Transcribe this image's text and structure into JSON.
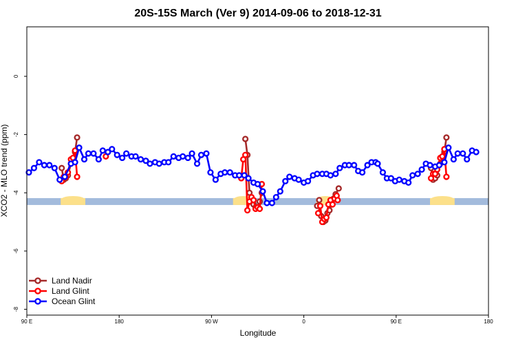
{
  "chart_data": {
    "type": "line",
    "title": "20S-15S March (Ver 9)   2014-09-06 to 2018-12-31",
    "xlabel": "Longitude",
    "ylabel": "XCO2 - MLO trend (ppm)",
    "xlim": [
      90,
      540
    ],
    "ylim": [
      -8.2,
      1.7
    ],
    "x_ticks": [
      {
        "value": 90,
        "label": "90 E"
      },
      {
        "value": 180,
        "label": "180"
      },
      {
        "value": 270,
        "label": "90 W"
      },
      {
        "value": 360,
        "label": "0"
      },
      {
        "value": 450,
        "label": "90 E"
      },
      {
        "value": 540,
        "label": "180"
      }
    ],
    "y_ticks": [
      {
        "value": 0,
        "label": "0"
      },
      {
        "value": -2,
        "label": "-2"
      },
      {
        "value": -4,
        "label": "-4"
      },
      {
        "value": -6,
        "label": "-6"
      },
      {
        "value": -8,
        "label": "-8"
      }
    ],
    "legend_position": "bottom-left",
    "land_band": {
      "y": -4.3,
      "ocean_color": "#a3bbdc",
      "land_color": "#fce08a",
      "land_ranges": [
        [
          123,
          147
        ],
        [
          291,
          311
        ],
        [
          372,
          390
        ],
        [
          483,
          507
        ]
      ]
    },
    "series": [
      {
        "name": "Land Nadir",
        "color": "#a52a2a",
        "points": [
          [
            124,
            -3.15
          ],
          [
            126,
            -3.55
          ],
          [
            128,
            -3.5
          ],
          [
            130,
            -3.4
          ],
          [
            133,
            -3.0
          ],
          [
            135,
            -2.85
          ],
          [
            137,
            -2.6
          ],
          [
            139,
            -2.1
          ],
          [
            303,
            -2.15
          ],
          [
            305,
            -2.7
          ],
          [
            307,
            -4.0
          ],
          [
            309,
            -4.3
          ],
          [
            311,
            -4.4
          ],
          [
            313,
            -4.5
          ],
          [
            315,
            -4.5
          ],
          [
            317,
            -4.3
          ],
          [
            319,
            -4.0
          ],
          [
            373,
            -4.45
          ],
          [
            375,
            -4.25
          ],
          [
            377,
            -4.8
          ],
          [
            379,
            -5.0
          ],
          [
            381,
            -4.95
          ],
          [
            383,
            -4.7
          ],
          [
            385,
            -4.6
          ],
          [
            387,
            -4.4
          ],
          [
            389,
            -4.2
          ],
          [
            391,
            -4.05
          ],
          [
            394,
            -3.85
          ],
          [
            484,
            -3.15
          ],
          [
            486,
            -3.55
          ],
          [
            488,
            -3.5
          ],
          [
            490,
            -3.4
          ],
          [
            493,
            -3.0
          ],
          [
            495,
            -2.85
          ],
          [
            497,
            -2.6
          ],
          [
            499,
            -2.1
          ]
        ]
      },
      {
        "name": "Land Glint",
        "color": "#ff0000",
        "points": [
          [
            124,
            -3.6
          ],
          [
            126,
            -3.45
          ],
          [
            128,
            -3.45
          ],
          [
            130,
            -3.3
          ],
          [
            133,
            -2.85
          ],
          [
            135,
            -2.8
          ],
          [
            137,
            -2.55
          ],
          [
            139,
            -3.45
          ],
          [
            167,
            -2.75
          ],
          [
            299,
            -3.5
          ],
          [
            301,
            -2.85
          ],
          [
            303,
            -2.7
          ],
          [
            305,
            -4.6
          ],
          [
            307,
            -4.3
          ],
          [
            309,
            -4.15
          ],
          [
            311,
            -4.25
          ],
          [
            313,
            -4.55
          ],
          [
            315,
            -4.5
          ],
          [
            317,
            -4.55
          ],
          [
            319,
            -3.7
          ],
          [
            374,
            -4.7
          ],
          [
            376,
            -4.45
          ],
          [
            378,
            -5.0
          ],
          [
            380,
            -4.9
          ],
          [
            382,
            -4.85
          ],
          [
            384,
            -4.4
          ],
          [
            386,
            -4.25
          ],
          [
            388,
            -4.4
          ],
          [
            390,
            -4.2
          ],
          [
            392,
            -4.1
          ],
          [
            393,
            -4.25
          ],
          [
            484,
            -3.5
          ],
          [
            486,
            -3.35
          ],
          [
            488,
            -3.35
          ],
          [
            490,
            -3.2
          ],
          [
            493,
            -2.8
          ],
          [
            495,
            -2.75
          ],
          [
            497,
            -2.5
          ],
          [
            499,
            -3.45
          ]
        ]
      },
      {
        "name": "Ocean Glint",
        "color": "#0000ff",
        "points": [
          [
            92,
            -3.3
          ],
          [
            97,
            -3.15
          ],
          [
            102,
            -2.95
          ],
          [
            107,
            -3.05
          ],
          [
            112,
            -3.05
          ],
          [
            117,
            -3.15
          ],
          [
            122,
            -3.55
          ],
          [
            127,
            -3.45
          ],
          [
            133,
            -3.0
          ],
          [
            137,
            -2.95
          ],
          [
            141,
            -2.45
          ],
          [
            146,
            -2.85
          ],
          [
            150,
            -2.65
          ],
          [
            155,
            -2.65
          ],
          [
            160,
            -2.85
          ],
          [
            164,
            -2.55
          ],
          [
            169,
            -2.6
          ],
          [
            173,
            -2.5
          ],
          [
            178,
            -2.7
          ],
          [
            183,
            -2.8
          ],
          [
            187,
            -2.65
          ],
          [
            192,
            -2.75
          ],
          [
            196,
            -2.75
          ],
          [
            201,
            -2.85
          ],
          [
            206,
            -2.9
          ],
          [
            210,
            -3.0
          ],
          [
            215,
            -2.95
          ],
          [
            219,
            -3.0
          ],
          [
            224,
            -2.95
          ],
          [
            228,
            -2.95
          ],
          [
            233,
            -2.75
          ],
          [
            238,
            -2.8
          ],
          [
            242,
            -2.75
          ],
          [
            247,
            -2.8
          ],
          [
            251,
            -2.65
          ],
          [
            256,
            -3.0
          ],
          [
            260,
            -2.7
          ],
          [
            265,
            -2.65
          ],
          [
            269,
            -3.3
          ],
          [
            274,
            -3.55
          ],
          [
            279,
            -3.35
          ],
          [
            283,
            -3.3
          ],
          [
            288,
            -3.3
          ],
          [
            293,
            -3.4
          ],
          [
            297,
            -3.4
          ],
          [
            302,
            -3.4
          ],
          [
            306,
            -3.5
          ],
          [
            311,
            -3.65
          ],
          [
            315,
            -3.7
          ],
          [
            320,
            -3.95
          ],
          [
            324,
            -4.35
          ],
          [
            329,
            -4.35
          ],
          [
            333,
            -4.15
          ],
          [
            337,
            -3.95
          ],
          [
            342,
            -3.6
          ],
          [
            346,
            -3.45
          ],
          [
            351,
            -3.5
          ],
          [
            355,
            -3.55
          ],
          [
            360,
            -3.65
          ],
          [
            364,
            -3.6
          ],
          [
            369,
            -3.4
          ],
          [
            373,
            -3.35
          ],
          [
            378,
            -3.35
          ],
          [
            382,
            -3.35
          ],
          [
            386,
            -3.4
          ],
          [
            391,
            -3.35
          ],
          [
            395,
            -3.15
          ],
          [
            400,
            -3.05
          ],
          [
            404,
            -3.05
          ],
          [
            409,
            -3.05
          ],
          [
            413,
            -3.25
          ],
          [
            417,
            -3.3
          ],
          [
            422,
            -3.05
          ],
          [
            426,
            -2.95
          ],
          [
            430,
            -2.95
          ],
          [
            432,
            -3.0
          ],
          [
            437,
            -3.3
          ],
          [
            441,
            -3.5
          ],
          [
            445,
            -3.5
          ],
          [
            449,
            -3.6
          ],
          [
            453,
            -3.55
          ],
          [
            458,
            -3.6
          ],
          [
            462,
            -3.65
          ],
          [
            466,
            -3.4
          ],
          [
            471,
            -3.35
          ],
          [
            475,
            -3.2
          ],
          [
            479,
            -3.0
          ],
          [
            483,
            -3.05
          ],
          [
            488,
            -3.1
          ],
          [
            492,
            -3.05
          ],
          [
            497,
            -2.95
          ],
          [
            501,
            -2.45
          ],
          [
            506,
            -2.85
          ],
          [
            510,
            -2.65
          ],
          [
            515,
            -2.65
          ],
          [
            519,
            -2.85
          ],
          [
            524,
            -2.55
          ],
          [
            528,
            -2.6
          ]
        ]
      }
    ]
  }
}
